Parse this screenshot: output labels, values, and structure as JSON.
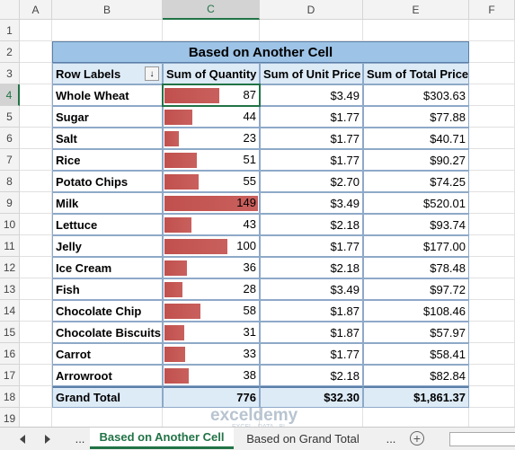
{
  "columns": [
    "A",
    "B",
    "C",
    "D",
    "E",
    "F"
  ],
  "rows": [
    1,
    2,
    3,
    4,
    5,
    6,
    7,
    8,
    9,
    10,
    11,
    12,
    13,
    14,
    15,
    16,
    17,
    18,
    19
  ],
  "pivot": {
    "title": "Based on Another Cell",
    "headers": [
      "Row Labels",
      "Sum of Quantity",
      "Sum of Unit Price",
      "Sum of Total Price"
    ],
    "rows": [
      [
        "Whole Wheat",
        87,
        "$3.49",
        "$303.63"
      ],
      [
        "Sugar",
        44,
        "$1.77",
        "$77.88"
      ],
      [
        "Salt",
        23,
        "$1.77",
        "$40.71"
      ],
      [
        "Rice",
        51,
        "$1.77",
        "$90.27"
      ],
      [
        "Potato Chips",
        55,
        "$2.70",
        "$74.25"
      ],
      [
        "Milk",
        149,
        "$3.49",
        "$520.01"
      ],
      [
        "Lettuce",
        43,
        "$2.18",
        "$93.74"
      ],
      [
        "Jelly",
        100,
        "$1.77",
        "$177.00"
      ],
      [
        "Ice Cream",
        36,
        "$2.18",
        "$78.48"
      ],
      [
        "Fish",
        28,
        "$3.49",
        "$97.72"
      ],
      [
        "Chocolate Chip",
        58,
        "$1.87",
        "$108.46"
      ],
      [
        "Chocolate Biscuits",
        31,
        "$1.87",
        "$57.97"
      ],
      [
        "Carrot",
        33,
        "$1.77",
        "$58.41"
      ],
      [
        "Arrowroot",
        38,
        "$2.18",
        "$82.84"
      ]
    ],
    "total": [
      "Grand Total",
      776,
      "$32.30",
      "$1,861.37"
    ]
  },
  "tabs": [
    "...",
    "Based on Another Cell",
    "Based on Grand Total",
    "..."
  ],
  "watermark": [
    "exceldemy",
    "EXCEL · DATA · BI"
  ]
}
